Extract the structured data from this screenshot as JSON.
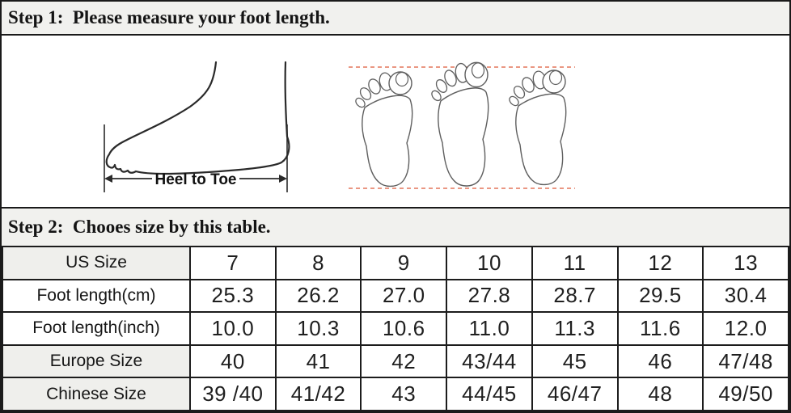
{
  "colors": {
    "band_bg": "#f1f1ee",
    "border": "#1a1a1a",
    "label_col_shaded_bg": "#efefec",
    "dash_line": "#e4755a",
    "side_foot_outline": "#2a2a2a",
    "footprint_outline": "#5f5f5f"
  },
  "step1": {
    "title": "Step 1:  Please measure your foot length."
  },
  "step2": {
    "title": "Step 2:  Chooes size by this table."
  },
  "diagram": {
    "heel_to_toe_label": "Heel to Toe"
  },
  "size_table": {
    "rows": [
      {
        "label": "US Size",
        "shaded": true,
        "values": [
          "7",
          "8",
          "9",
          "10",
          "11",
          "12",
          "13"
        ]
      },
      {
        "label": "Foot length(cm)",
        "shaded": false,
        "values": [
          "25.3",
          "26.2",
          "27.0",
          "27.8",
          "28.7",
          "29.5",
          "30.4"
        ]
      },
      {
        "label": "Foot length(inch)",
        "shaded": false,
        "values": [
          "10.0",
          "10.3",
          "10.6",
          "11.0",
          "11.3",
          "11.6",
          "12.0"
        ]
      },
      {
        "label": "Europe Size",
        "shaded": true,
        "values": [
          "40",
          "41",
          "42",
          "43/44",
          "45",
          "46",
          "47/48"
        ]
      },
      {
        "label": "Chinese Size",
        "shaded": true,
        "values": [
          "39 /40",
          "41/42",
          "43",
          "44/45",
          "46/47",
          "48",
          "49/50"
        ]
      }
    ]
  }
}
